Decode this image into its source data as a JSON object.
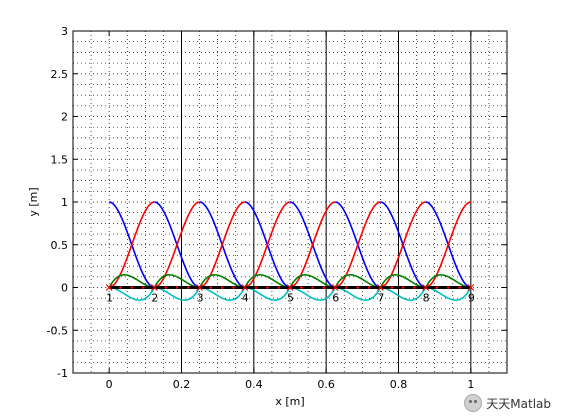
{
  "chart_data": {
    "type": "line",
    "title": "",
    "xlabel": "x [m]",
    "ylabel": "y [m]",
    "xlim": [
      -0.1,
      1.1
    ],
    "ylim": [
      -1,
      3
    ],
    "xticks": [
      "0",
      "0.2",
      "0.4",
      "0.6",
      "0.8",
      "1"
    ],
    "xtick_values": [
      0,
      0.2,
      0.4,
      0.6,
      0.8,
      1
    ],
    "yticks": [
      "-1",
      "-0.5",
      "0",
      "0.5",
      "1",
      "1.5",
      "2",
      "2.5",
      "3"
    ],
    "ytick_values": [
      -1,
      -0.5,
      0,
      0.5,
      1,
      1.5,
      2,
      2.5,
      3
    ],
    "grid": "dotted",
    "vertical_lines_x": [
      0.2,
      0.4,
      0.6,
      0.8,
      1
    ],
    "element_length": 0.125,
    "nodes": {
      "labels": [
        "1",
        "2",
        "3",
        "4",
        "5",
        "6",
        "7",
        "8",
        "9"
      ],
      "x": [
        0,
        0.125,
        0.25,
        0.375,
        0.5,
        0.625,
        0.75,
        0.875,
        1.0
      ],
      "y": [
        0,
        0,
        0,
        0,
        0,
        0,
        0,
        0,
        0
      ]
    },
    "series": [
      {
        "color": "#0000ff",
        "shape": "hermite_h1",
        "peak": 1.0
      },
      {
        "color": "#ff0000",
        "shape": "hermite_h3",
        "peak": 1.0
      },
      {
        "color": "#008000",
        "shape": "hermite_h2",
        "peak": 0.148
      },
      {
        "color": "#00bfbf",
        "shape": "hermite_h4",
        "peak": -0.148
      }
    ],
    "beam": {
      "color": "#000000",
      "y": 0
    }
  },
  "watermark": {
    "text": "天天Matlab",
    "icon": "wechat-icon"
  }
}
